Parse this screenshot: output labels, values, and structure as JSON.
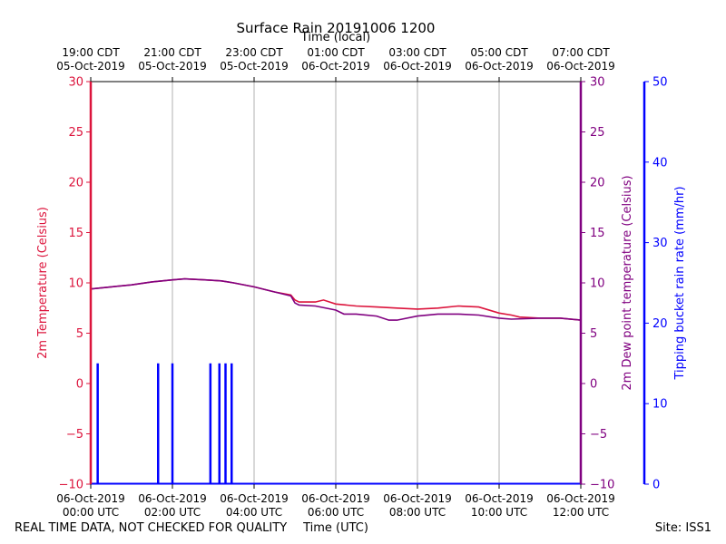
{
  "colors": {
    "temperature": "#dc143c",
    "dewpoint": "#800080",
    "rain": "#0000ff",
    "grid": "#b0b0b0"
  },
  "footer": {
    "left": "REAL TIME DATA, NOT CHECKED FOR QUALITY",
    "right": "Site: ISS1"
  },
  "chart_data": {
    "type": "line",
    "title": "Surface Rain 20191006 1200",
    "xlabel": "Time (UTC)",
    "x2label": "Time (local)",
    "ylabel_left": "2m Temperature (Celsius)",
    "ylabel_right1": "2m Dew point temperature (Celsius)",
    "ylabel_right2": "Tipping bucket rain rate (mm/hr)",
    "xlim_hours_utc": [
      0,
      12
    ],
    "ylim": [
      -10,
      30
    ],
    "ylim_rain": [
      0,
      50
    ],
    "grid": true,
    "yticks": [
      -10,
      -5,
      0,
      5,
      10,
      15,
      20,
      25,
      30
    ],
    "yticks_rain": [
      0,
      10,
      20,
      30,
      40,
      50
    ],
    "bottom_ticks": [
      {
        "hour": 0,
        "line1": "06-Oct-2019",
        "line2": "00:00 UTC"
      },
      {
        "hour": 2,
        "line1": "06-Oct-2019",
        "line2": "02:00 UTC"
      },
      {
        "hour": 4,
        "line1": "06-Oct-2019",
        "line2": "04:00 UTC"
      },
      {
        "hour": 6,
        "line1": "06-Oct-2019",
        "line2": "06:00 UTC"
      },
      {
        "hour": 8,
        "line1": "06-Oct-2019",
        "line2": "08:00 UTC"
      },
      {
        "hour": 10,
        "line1": "06-Oct-2019",
        "line2": "10:00 UTC"
      },
      {
        "hour": 12,
        "line1": "06-Oct-2019",
        "line2": "12:00 UTC"
      }
    ],
    "top_ticks": [
      {
        "hour": 0,
        "line1": "19:00 CDT",
        "line2": "05-Oct-2019"
      },
      {
        "hour": 2,
        "line1": "21:00 CDT",
        "line2": "05-Oct-2019"
      },
      {
        "hour": 4,
        "line1": "23:00 CDT",
        "line2": "05-Oct-2019"
      },
      {
        "hour": 6,
        "line1": "01:00 CDT",
        "line2": "06-Oct-2019"
      },
      {
        "hour": 8,
        "line1": "03:00 CDT",
        "line2": "06-Oct-2019"
      },
      {
        "hour": 10,
        "line1": "05:00 CDT",
        "line2": "06-Oct-2019"
      },
      {
        "hour": 12,
        "line1": "07:00 CDT",
        "line2": "06-Oct-2019"
      }
    ],
    "series": [
      {
        "name": "2m Temperature",
        "axis": "left",
        "points": [
          [
            0,
            9.4
          ],
          [
            0.5,
            9.6
          ],
          [
            1,
            9.8
          ],
          [
            1.5,
            10.1
          ],
          [
            2,
            10.3
          ],
          [
            2.3,
            10.4
          ],
          [
            2.8,
            10.3
          ],
          [
            3.2,
            10.2
          ],
          [
            3.5,
            10.0
          ],
          [
            4,
            9.6
          ],
          [
            4.5,
            9.1
          ],
          [
            4.9,
            8.8
          ],
          [
            5.0,
            8.3
          ],
          [
            5.1,
            8.1
          ],
          [
            5.5,
            8.1
          ],
          [
            5.7,
            8.3
          ],
          [
            6,
            7.9
          ],
          [
            6.5,
            7.7
          ],
          [
            7,
            7.6
          ],
          [
            7.5,
            7.5
          ],
          [
            8,
            7.4
          ],
          [
            8.5,
            7.5
          ],
          [
            9,
            7.7
          ],
          [
            9.5,
            7.6
          ],
          [
            10,
            7.0
          ],
          [
            10.3,
            6.8
          ],
          [
            10.5,
            6.6
          ],
          [
            11,
            6.5
          ],
          [
            11.5,
            6.5
          ],
          [
            12,
            6.3
          ]
        ]
      },
      {
        "name": "2m Dew point temperature",
        "axis": "right1",
        "points": [
          [
            0,
            9.4
          ],
          [
            0.5,
            9.6
          ],
          [
            1,
            9.8
          ],
          [
            1.5,
            10.1
          ],
          [
            2,
            10.3
          ],
          [
            2.3,
            10.4
          ],
          [
            2.8,
            10.3
          ],
          [
            3.2,
            10.2
          ],
          [
            3.5,
            10.0
          ],
          [
            4,
            9.6
          ],
          [
            4.5,
            9.1
          ],
          [
            4.9,
            8.7
          ],
          [
            5.0,
            8.0
          ],
          [
            5.1,
            7.8
          ],
          [
            5.5,
            7.7
          ],
          [
            6,
            7.3
          ],
          [
            6.2,
            6.9
          ],
          [
            6.5,
            6.9
          ],
          [
            7,
            6.7
          ],
          [
            7.3,
            6.3
          ],
          [
            7.5,
            6.3
          ],
          [
            8,
            6.7
          ],
          [
            8.5,
            6.9
          ],
          [
            9,
            6.9
          ],
          [
            9.5,
            6.8
          ],
          [
            10,
            6.5
          ],
          [
            10.3,
            6.4
          ],
          [
            11,
            6.5
          ],
          [
            11.5,
            6.5
          ],
          [
            12,
            6.3
          ]
        ]
      },
      {
        "name": "Tipping bucket rain rate",
        "axis": "right2",
        "type": "bar",
        "points": [
          [
            0.17,
            15
          ],
          [
            1.65,
            15
          ],
          [
            2.0,
            15
          ],
          [
            2.93,
            15
          ],
          [
            3.15,
            15
          ],
          [
            3.3,
            15
          ],
          [
            3.45,
            15
          ]
        ]
      }
    ]
  }
}
